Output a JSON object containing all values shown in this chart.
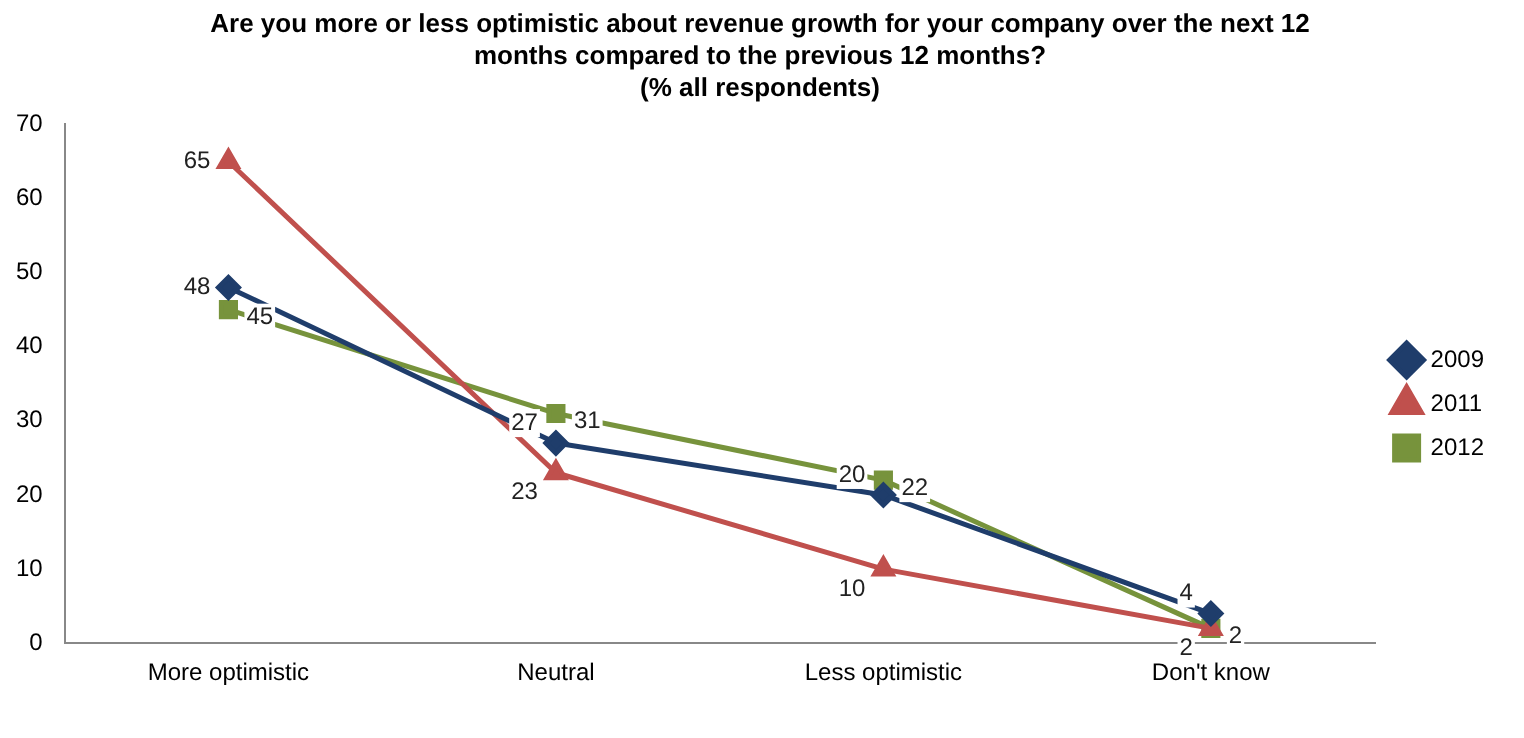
{
  "chart_data": {
    "type": "line",
    "title": "Are you more or less optimistic about revenue growth for your company over the next 12 months compared to the previous 12 months?",
    "subtitle": "(% all respondents)",
    "categories": [
      "More optimistic",
      "Neutral",
      "Less optimistic",
      "Don't know"
    ],
    "series": [
      {
        "name": "2009",
        "color": "#1f3d6b",
        "marker": "diamond",
        "values": [
          48,
          27,
          20,
          4
        ]
      },
      {
        "name": "2011",
        "color": "#c0504d",
        "marker": "triangle",
        "values": [
          65,
          23,
          10,
          2
        ]
      },
      {
        "name": "2012",
        "color": "#77933c",
        "marker": "square",
        "values": [
          45,
          31,
          22,
          2
        ]
      }
    ],
    "ylim": [
      0,
      70
    ],
    "yticks": [
      0,
      10,
      20,
      30,
      40,
      50,
      60,
      70
    ],
    "grid": false,
    "legend": "right",
    "data_labels": true
  }
}
